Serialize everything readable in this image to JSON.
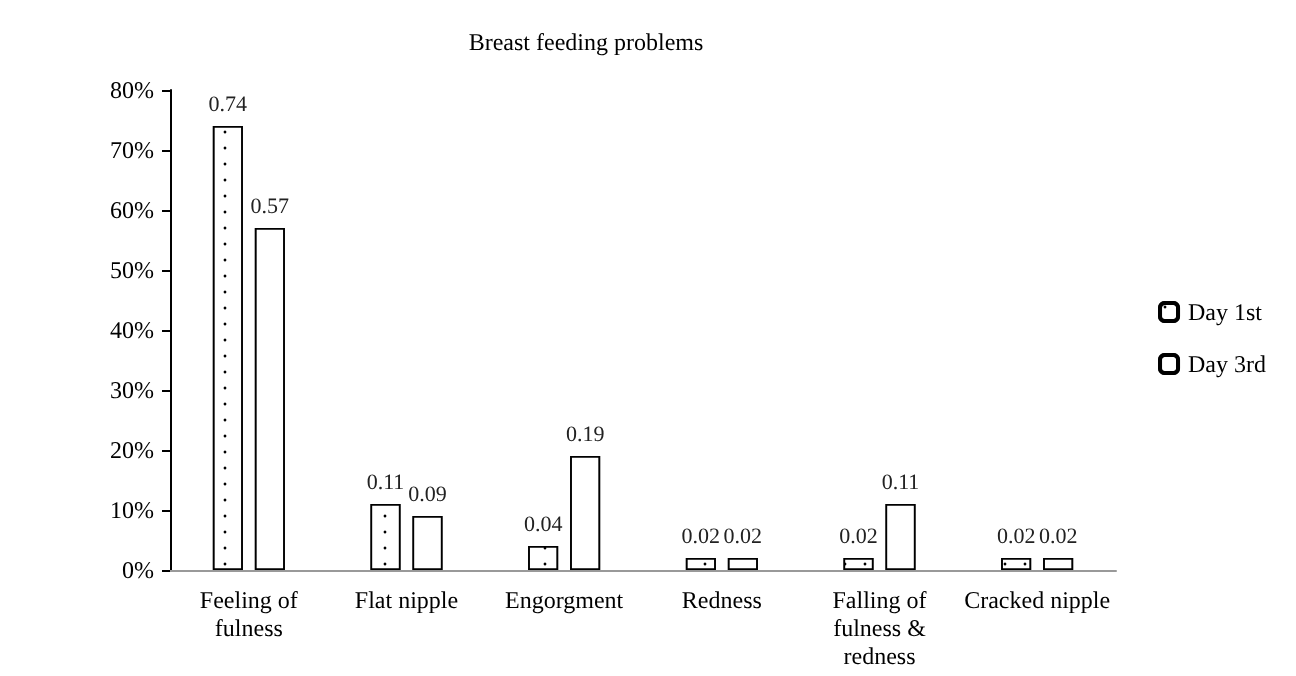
{
  "chart_data": {
    "type": "bar",
    "title": "Breast feeding problems",
    "categories": [
      "Feeling of\nfulness",
      "Flat nipple",
      "Engorgment",
      "Redness",
      "Falling of\nfulness &\nredness",
      "Cracked nipple"
    ],
    "series": [
      {
        "name": "Day 1st",
        "color": "#ffffff",
        "values": [
          0.74,
          0.11,
          0.04,
          0.02,
          0.02,
          0.02
        ]
      },
      {
        "name": "Day 3rd",
        "color": "#ffffff",
        "values": [
          0.57,
          0.09,
          0.19,
          0.02,
          0.11,
          0.02
        ]
      }
    ],
    "ylim": [
      0,
      0.8
    ],
    "yticks": [
      {
        "value": 0,
        "label": "0%"
      },
      {
        "value": 0.1,
        "label": "10%"
      },
      {
        "value": 0.2,
        "label": "20%"
      },
      {
        "value": 0.3,
        "label": "30%"
      },
      {
        "value": 0.4,
        "label": "40%"
      },
      {
        "value": 0.5,
        "label": "50%"
      },
      {
        "value": 0.6,
        "label": "60%"
      },
      {
        "value": 0.7,
        "label": "70%"
      },
      {
        "value": 0.8,
        "label": "80%"
      }
    ],
    "data_labels": true,
    "grid": false,
    "legend": "right"
  }
}
